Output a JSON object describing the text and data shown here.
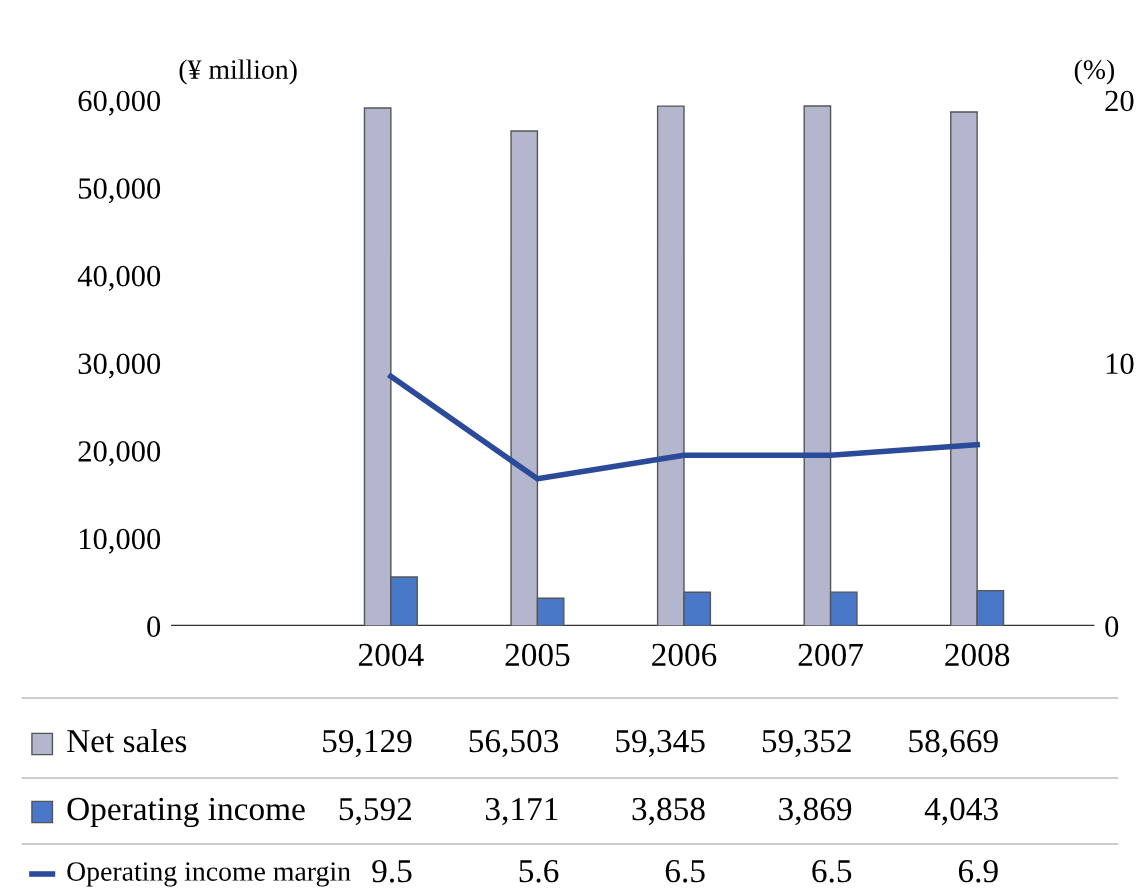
{
  "chart_data": {
    "type": "bar",
    "categories": [
      "2004",
      "2005",
      "2006",
      "2007",
      "2008"
    ],
    "ylabel": "(¥ million)",
    "y2label": "(%)",
    "ylim": [
      0,
      60000
    ],
    "yticks": [
      {
        "value": 0,
        "label": "0"
      },
      {
        "value": 10000,
        "label": "10,000"
      },
      {
        "value": 20000,
        "label": "20,000"
      },
      {
        "value": 30000,
        "label": "30,000"
      },
      {
        "value": 40000,
        "label": "40,000"
      },
      {
        "value": 50000,
        "label": "50,000"
      },
      {
        "value": 60000,
        "label": "60,000"
      }
    ],
    "y2lim": [
      0,
      20
    ],
    "y2ticks": [
      0,
      10,
      20
    ],
    "series": [
      {
        "name": "Net sales",
        "color": "#b3b6cc",
        "values": [
          59129,
          56503,
          59345,
          59352,
          58669
        ],
        "value_labels": [
          "59,129",
          "56,503",
          "59,345",
          "59,352",
          "58,669"
        ]
      },
      {
        "name": "Operating income",
        "color": "#4a78c8",
        "values": [
          5592,
          3171,
          3858,
          3869,
          4043
        ],
        "value_labels": [
          "5,592",
          "3,171",
          "3,858",
          "3,869",
          "4,043"
        ]
      },
      {
        "name": "Operating income margin",
        "type": "line",
        "axis": "y2",
        "color": "#2b4a9a",
        "values": [
          9.5,
          5.6,
          6.5,
          6.5,
          6.9
        ],
        "value_labels": [
          "9.5",
          "5.6",
          "6.5",
          "6.5",
          "6.9"
        ]
      }
    ],
    "legend": "bottom",
    "grid": false,
    "marker": "none"
  }
}
